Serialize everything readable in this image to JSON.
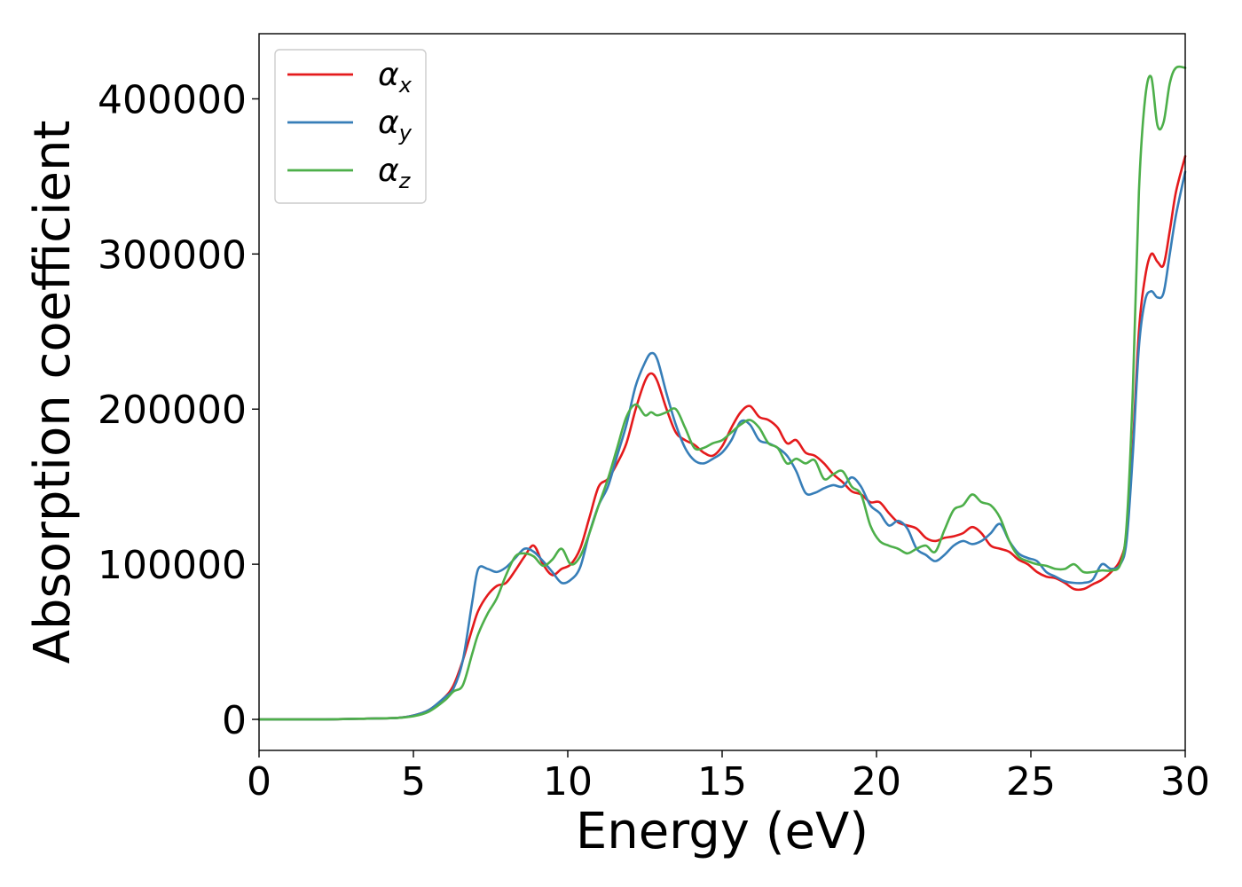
{
  "chart_data": {
    "type": "line",
    "title": "",
    "xlabel": "Energy (eV)",
    "ylabel": "Absorption coefficient",
    "xlim": [
      0,
      30
    ],
    "ylim": [
      -20000,
      442000
    ],
    "xticks": [
      "0",
      "5",
      "10",
      "15",
      "20",
      "25",
      "30"
    ],
    "yticks": [
      "0",
      "100000",
      "200000",
      "300000",
      "400000"
    ],
    "grid": false,
    "legend_position": "upper-left",
    "series": [
      {
        "name": "α",
        "subscript": "x",
        "color": "#e41a1c",
        "x": [
          0,
          2,
          3.5,
          4.5,
          5,
          5.5,
          6,
          6.3,
          6.6,
          6.9,
          7.1,
          7.4,
          7.7,
          8,
          8.3,
          8.6,
          8.9,
          9.2,
          9.5,
          9.8,
          10.1,
          10.4,
          10.7,
          11,
          11.3,
          11.6,
          11.9,
          12.2,
          12.5,
          12.7,
          12.9,
          13.2,
          13.5,
          13.8,
          14.1,
          14.4,
          14.7,
          15,
          15.3,
          15.6,
          15.9,
          16.2,
          16.5,
          16.8,
          17.1,
          17.4,
          17.7,
          18,
          18.3,
          18.6,
          18.9,
          19.2,
          19.5,
          19.8,
          20.1,
          20.4,
          20.7,
          21,
          21.3,
          21.6,
          21.9,
          22.2,
          22.5,
          22.8,
          23.1,
          23.4,
          23.7,
          24,
          24.3,
          24.6,
          24.9,
          25.2,
          25.5,
          25.8,
          26.1,
          26.4,
          26.7,
          27,
          27.3,
          27.6,
          27.9,
          28.1,
          28.3,
          28.5,
          28.7,
          28.9,
          29.1,
          29.3,
          29.5,
          29.7,
          30
        ],
        "y": [
          0,
          0,
          500,
          1000,
          2500,
          6000,
          14000,
          22000,
          38000,
          58000,
          70000,
          80000,
          86000,
          88000,
          96000,
          105000,
          112000,
          100000,
          93000,
          97000,
          100000,
          110000,
          130000,
          150000,
          155000,
          165000,
          178000,
          200000,
          218000,
          223000,
          218000,
          200000,
          185000,
          180000,
          177000,
          172000,
          170000,
          176000,
          188000,
          198000,
          202000,
          195000,
          193000,
          188000,
          178000,
          180000,
          172000,
          170000,
          165000,
          158000,
          153000,
          147000,
          145000,
          140000,
          140000,
          133000,
          127000,
          125000,
          123000,
          117000,
          115000,
          117000,
          118000,
          120000,
          124000,
          120000,
          112000,
          110000,
          108000,
          103000,
          100000,
          95000,
          92000,
          91000,
          88000,
          84000,
          84000,
          87000,
          90000,
          95000,
          103000,
          120000,
          175000,
          250000,
          285000,
          300000,
          295000,
          293000,
          315000,
          340000,
          363000
        ]
      },
      {
        "name": "α",
        "subscript": "y",
        "color": "#377eb8",
        "x": [
          0,
          2,
          3.5,
          4.5,
          5,
          5.5,
          6,
          6.3,
          6.6,
          6.9,
          7.1,
          7.4,
          7.7,
          8,
          8.3,
          8.6,
          8.9,
          9.2,
          9.5,
          9.8,
          10.1,
          10.4,
          10.7,
          11,
          11.3,
          11.6,
          11.9,
          12.2,
          12.5,
          12.7,
          12.9,
          13.2,
          13.5,
          13.8,
          14.1,
          14.4,
          14.7,
          15,
          15.3,
          15.6,
          15.9,
          16.2,
          16.5,
          16.8,
          17.1,
          17.4,
          17.7,
          18,
          18.3,
          18.6,
          18.9,
          19.2,
          19.5,
          19.8,
          20.1,
          20.4,
          20.7,
          21,
          21.3,
          21.6,
          21.9,
          22.2,
          22.5,
          22.8,
          23.1,
          23.4,
          23.7,
          24,
          24.3,
          24.6,
          24.9,
          25.2,
          25.5,
          25.8,
          26.1,
          26.4,
          26.7,
          27,
          27.3,
          27.6,
          27.9,
          28.1,
          28.3,
          28.5,
          28.7,
          28.9,
          29.1,
          29.3,
          29.5,
          29.7,
          30
        ],
        "y": [
          0,
          0,
          500,
          1000,
          2500,
          6000,
          14000,
          20000,
          38000,
          75000,
          97000,
          97000,
          95000,
          98000,
          104000,
          110000,
          108000,
          102000,
          95000,
          88000,
          90000,
          98000,
          120000,
          138000,
          150000,
          170000,
          190000,
          215000,
          230000,
          236000,
          232000,
          210000,
          190000,
          175000,
          167000,
          165000,
          168000,
          172000,
          180000,
          192000,
          190000,
          180000,
          178000,
          175000,
          170000,
          160000,
          146000,
          146000,
          149000,
          151000,
          150000,
          156000,
          150000,
          138000,
          133000,
          125000,
          128000,
          123000,
          110000,
          106000,
          102000,
          106000,
          112000,
          115000,
          113000,
          115000,
          120000,
          126000,
          115000,
          107000,
          104000,
          102000,
          95000,
          92000,
          89000,
          88000,
          88000,
          90000,
          100000,
          97000,
          100000,
          115000,
          170000,
          240000,
          270000,
          276000,
          272000,
          275000,
          300000,
          325000,
          353000
        ]
      },
      {
        "name": "α",
        "subscript": "z",
        "color": "#4daf4a",
        "x": [
          0,
          2,
          3.5,
          4.5,
          5,
          5.5,
          6,
          6.3,
          6.6,
          6.9,
          7.1,
          7.4,
          7.7,
          8,
          8.3,
          8.6,
          8.9,
          9.2,
          9.5,
          9.8,
          10.1,
          10.4,
          10.7,
          11,
          11.3,
          11.6,
          11.9,
          12.2,
          12.5,
          12.7,
          12.9,
          13.2,
          13.5,
          13.8,
          14.1,
          14.4,
          14.7,
          15,
          15.3,
          15.6,
          15.9,
          16.2,
          16.5,
          16.8,
          17.1,
          17.4,
          17.7,
          18,
          18.3,
          18.6,
          18.9,
          19.2,
          19.5,
          19.8,
          20.1,
          20.4,
          20.7,
          21,
          21.3,
          21.6,
          21.9,
          22.2,
          22.5,
          22.8,
          23.1,
          23.4,
          23.7,
          24,
          24.3,
          24.6,
          24.9,
          25.2,
          25.5,
          25.8,
          26.1,
          26.4,
          26.7,
          27,
          27.3,
          27.6,
          27.9,
          28.1,
          28.3,
          28.5,
          28.7,
          28.9,
          29.1,
          29.3,
          29.5,
          29.7,
          30
        ],
        "y": [
          0,
          0,
          500,
          1000,
          2000,
          5000,
          12000,
          18000,
          22000,
          42000,
          55000,
          68000,
          78000,
          93000,
          105000,
          107000,
          105000,
          99000,
          103000,
          110000,
          100000,
          105000,
          120000,
          138000,
          155000,
          175000,
          195000,
          203000,
          196000,
          198000,
          196000,
          198000,
          200000,
          188000,
          175000,
          175000,
          178000,
          180000,
          185000,
          190000,
          193000,
          188000,
          178000,
          175000,
          165000,
          168000,
          165000,
          167000,
          155000,
          158000,
          160000,
          150000,
          145000,
          125000,
          115000,
          112000,
          110000,
          107000,
          110000,
          112000,
          108000,
          122000,
          135000,
          138000,
          145000,
          140000,
          138000,
          130000,
          115000,
          105000,
          102000,
          100000,
          99000,
          97000,
          97000,
          100000,
          95000,
          95000,
          96000,
          96000,
          100000,
          125000,
          210000,
          340000,
          400000,
          414000,
          383000,
          385000,
          410000,
          420000,
          420000
        ]
      }
    ]
  }
}
